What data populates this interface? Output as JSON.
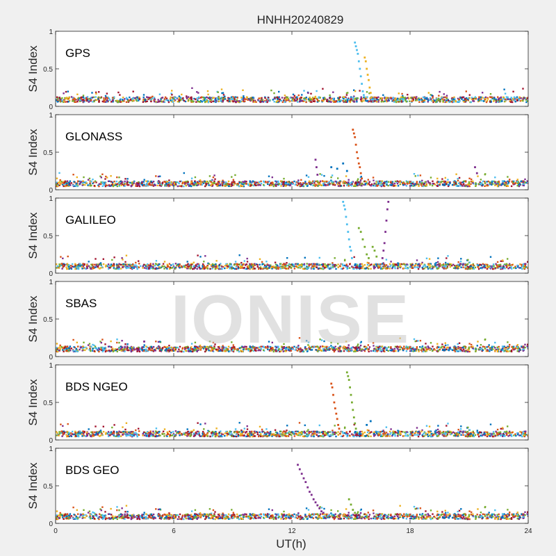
{
  "chart_data": {
    "type": "scatter",
    "title": "HNHH20240829",
    "xlabel": "UT(h)",
    "ylabel": "S4 Index",
    "xlim": [
      0,
      24
    ],
    "ylim": [
      0,
      1
    ],
    "xticks": [
      "0",
      "6",
      "12",
      "18",
      "24"
    ],
    "yticks": [
      "0",
      "0.5",
      "1"
    ],
    "watermark": "IONISE",
    "colors": [
      "#0072BD",
      "#D95319",
      "#EDB120",
      "#7E2F8E",
      "#77AC30",
      "#4DBEEE",
      "#A2142F"
    ],
    "panels": [
      {
        "label": "GPS",
        "baseline": 0.09,
        "series": [
          {
            "color_index": 5,
            "points": [
              [
                15.2,
                0.85
              ],
              [
                15.25,
                0.8
              ],
              [
                15.3,
                0.75
              ],
              [
                15.35,
                0.7
              ],
              [
                15.4,
                0.6
              ],
              [
                15.45,
                0.5
              ],
              [
                15.5,
                0.4
              ],
              [
                15.55,
                0.3
              ],
              [
                15.6,
                0.2
              ],
              [
                15.65,
                0.15
              ]
            ]
          },
          {
            "color_index": 2,
            "points": [
              [
                15.7,
                0.65
              ],
              [
                15.75,
                0.6
              ],
              [
                15.8,
                0.5
              ],
              [
                15.85,
                0.42
              ],
              [
                15.9,
                0.35
              ],
              [
                15.95,
                0.25
              ],
              [
                16.0,
                0.18
              ],
              [
                16.05,
                0.12
              ]
            ]
          }
        ]
      },
      {
        "label": "GLONASS",
        "baseline": 0.08,
        "series": [
          {
            "color_index": 1,
            "points": [
              [
                15.1,
                0.8
              ],
              [
                15.15,
                0.75
              ],
              [
                15.2,
                0.7
              ],
              [
                15.25,
                0.6
              ],
              [
                15.3,
                0.5
              ],
              [
                15.35,
                0.42
              ],
              [
                15.4,
                0.35
              ],
              [
                15.45,
                0.3
              ],
              [
                15.5,
                0.22
              ],
              [
                15.55,
                0.15
              ]
            ]
          },
          {
            "color_index": 3,
            "points": [
              [
                13.2,
                0.4
              ],
              [
                13.25,
                0.3
              ],
              [
                13.3,
                0.2
              ],
              [
                21.3,
                0.3
              ],
              [
                21.4,
                0.22
              ]
            ]
          },
          {
            "color_index": 0,
            "points": [
              [
                14.0,
                0.3
              ],
              [
                14.3,
                0.28
              ],
              [
                14.6,
                0.35
              ],
              [
                14.8,
                0.25
              ]
            ]
          }
        ]
      },
      {
        "label": "GALILEO",
        "baseline": 0.09,
        "series": [
          {
            "color_index": 5,
            "points": [
              [
                14.6,
                0.95
              ],
              [
                14.65,
                0.9
              ],
              [
                14.7,
                0.85
              ],
              [
                14.75,
                0.75
              ],
              [
                14.8,
                0.65
              ],
              [
                14.85,
                0.55
              ],
              [
                14.9,
                0.45
              ],
              [
                14.95,
                0.35
              ],
              [
                15.0,
                0.3
              ],
              [
                15.05,
                0.2
              ]
            ]
          },
          {
            "color_index": 4,
            "points": [
              [
                15.4,
                0.6
              ],
              [
                15.5,
                0.55
              ],
              [
                15.6,
                0.45
              ],
              [
                15.7,
                0.35
              ],
              [
                15.8,
                0.25
              ],
              [
                15.9,
                0.2
              ],
              [
                16.1,
                0.35
              ],
              [
                16.2,
                0.3
              ],
              [
                16.3,
                0.22
              ]
            ]
          },
          {
            "color_index": 3,
            "points": [
              [
                16.9,
                0.95
              ],
              [
                16.85,
                0.85
              ],
              [
                16.8,
                0.7
              ],
              [
                16.75,
                0.55
              ],
              [
                16.7,
                0.4
              ],
              [
                16.65,
                0.3
              ],
              [
                16.6,
                0.2
              ]
            ]
          }
        ]
      },
      {
        "label": "SBAS",
        "baseline": 0.1,
        "series": [
          {
            "color_index": 3,
            "points": [
              [
                4.5,
                0.2
              ]
            ]
          }
        ]
      },
      {
        "label": "BDS NGEO",
        "baseline": 0.08,
        "series": [
          {
            "color_index": 1,
            "points": [
              [
                14.0,
                0.75
              ],
              [
                14.05,
                0.7
              ],
              [
                14.1,
                0.6
              ],
              [
                14.15,
                0.5
              ],
              [
                14.2,
                0.42
              ],
              [
                14.25,
                0.35
              ],
              [
                14.3,
                0.28
              ],
              [
                14.35,
                0.2
              ],
              [
                14.4,
                0.15
              ]
            ]
          },
          {
            "color_index": 4,
            "points": [
              [
                14.8,
                0.9
              ],
              [
                14.85,
                0.85
              ],
              [
                14.9,
                0.8
              ],
              [
                14.95,
                0.7
              ],
              [
                15.0,
                0.6
              ],
              [
                15.05,
                0.5
              ],
              [
                15.1,
                0.4
              ],
              [
                15.15,
                0.3
              ],
              [
                15.2,
                0.22
              ],
              [
                15.25,
                0.15
              ]
            ]
          },
          {
            "color_index": 0,
            "points": [
              [
                16.0,
                0.25
              ],
              [
                15.8,
                0.2
              ]
            ]
          }
        ]
      },
      {
        "label": "BDS GEO",
        "baseline": 0.09,
        "series": [
          {
            "color_index": 3,
            "points": [
              [
                12.3,
                0.78
              ],
              [
                12.4,
                0.72
              ],
              [
                12.5,
                0.66
              ],
              [
                12.6,
                0.6
              ],
              [
                12.7,
                0.55
              ],
              [
                12.8,
                0.48
              ],
              [
                12.9,
                0.42
              ],
              [
                13.0,
                0.38
              ],
              [
                13.1,
                0.32
              ],
              [
                13.2,
                0.28
              ],
              [
                13.3,
                0.24
              ],
              [
                13.4,
                0.2
              ],
              [
                13.5,
                0.16
              ],
              [
                13.6,
                0.14
              ]
            ]
          },
          {
            "color_index": 4,
            "points": [
              [
                14.9,
                0.32
              ],
              [
                15.0,
                0.25
              ],
              [
                15.1,
                0.18
              ],
              [
                15.2,
                0.14
              ]
            ]
          }
        ]
      }
    ]
  }
}
